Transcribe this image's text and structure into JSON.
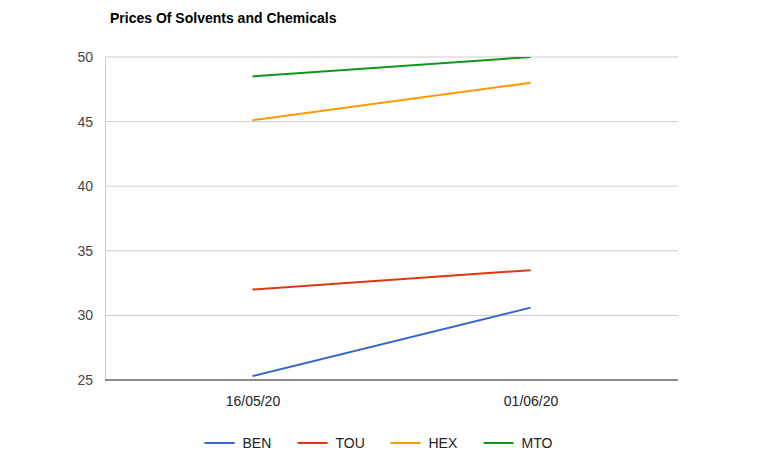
{
  "chart_data": {
    "type": "line",
    "title": "Prices Of Solvents and Chemicals",
    "categories": [
      "16/05/20",
      "01/06/20"
    ],
    "series": [
      {
        "name": "BEN",
        "color": "#3366cc",
        "values": [
          25.3,
          30.6
        ]
      },
      {
        "name": "TOU",
        "color": "#dc3912",
        "values": [
          32,
          33.5
        ]
      },
      {
        "name": "HEX",
        "color": "#ff9900",
        "values": [
          45.1,
          48
        ]
      },
      {
        "name": "MTO",
        "color": "#109618",
        "values": [
          48.5,
          50
        ]
      }
    ],
    "ylim": [
      25,
      50
    ],
    "yticks": [
      25,
      30,
      35,
      40,
      45,
      50
    ],
    "grid": true,
    "legend": "bottom"
  }
}
